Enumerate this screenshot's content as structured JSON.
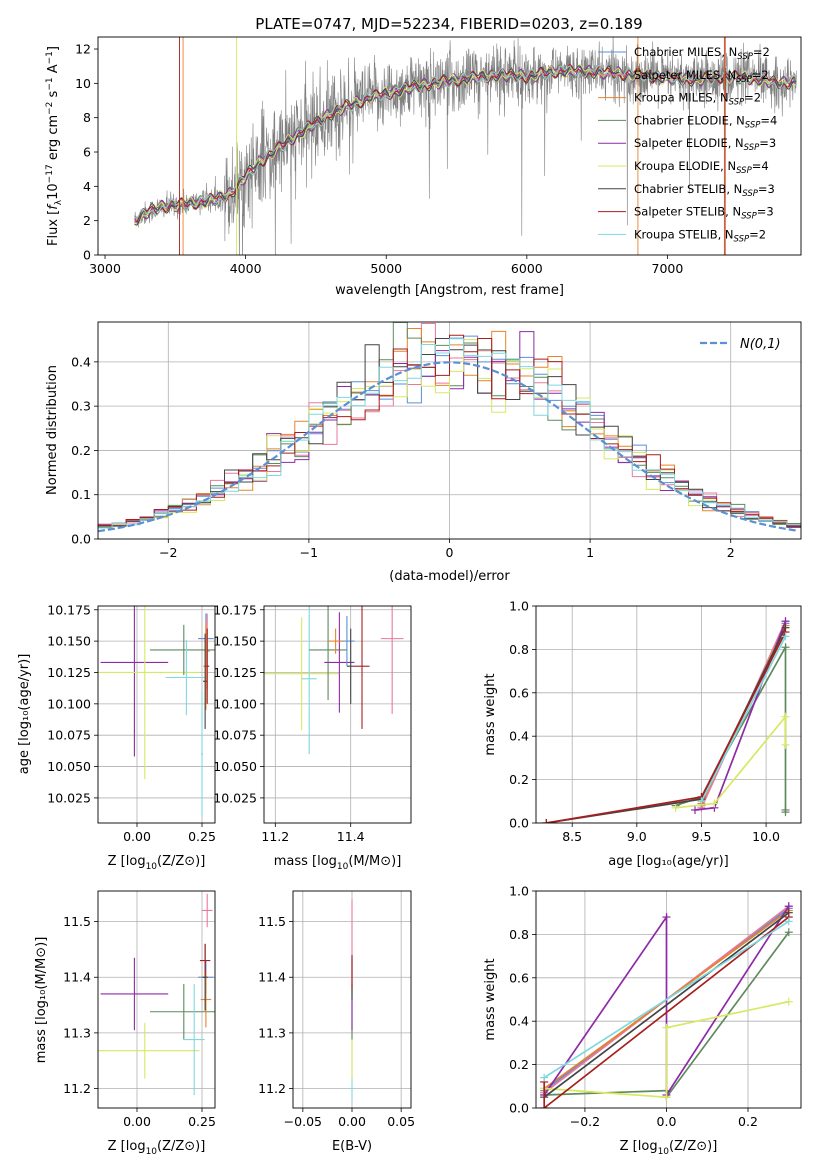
{
  "figure_title": "PLATE=0747, MJD=52234, FIBERID=0203, z=0.189",
  "colors": {
    "Chabrier MILES": "#5b8fd6",
    "Salpeter MILES": "#e8799a",
    "Kroupa MILES": "#e8832a",
    "Chabrier ELODIE": "#5e8a5e",
    "Salpeter ELODIE": "#8e2aa8",
    "Kroupa ELODIE": "#d8e860",
    "Chabrier STELIB": "#444444",
    "Salpeter STELIB": "#a81e1e",
    "Kroupa STELIB": "#7fd8e0",
    "data": "#808080",
    "normal": "#5b8fd6",
    "grid": "#b0b0b0"
  },
  "chart_data": [
    {
      "id": "spectrum",
      "type": "line",
      "title": "PLATE=0747, MJD=52234, FIBERID=0203, z=0.189",
      "xlabel": "wavelength [Angstrom, rest frame]",
      "ylabel": "Flux [f_λ 10^-17 erg cm^-2 s^-1 A^-1]",
      "xlim": [
        2950,
        7950
      ],
      "ylim": [
        0,
        12.7
      ],
      "xticks": [
        3000,
        4000,
        5000,
        6000,
        7000
      ],
      "yticks": [
        0,
        2,
        4,
        6,
        8,
        10,
        12
      ],
      "grid": false,
      "legend_position": "top-right",
      "legend": [
        {
          "label": "Chabrier MILES, N_SSP=2",
          "main": "Chabrier MILES, N",
          "sub": "SSP",
          "tail": "=2"
        },
        {
          "label": "Salpeter MILES, N_SSP=2",
          "main": "Salpeter MILES, N",
          "sub": "SSP",
          "tail": "=2"
        },
        {
          "label": "Kroupa MILES, N_SSP=2",
          "main": "Kroupa MILES, N",
          "sub": "SSP",
          "tail": "=2"
        },
        {
          "label": "Chabrier ELODIE, N_SSP=4",
          "main": "Chabrier ELODIE, N",
          "sub": "SSP",
          "tail": "=4"
        },
        {
          "label": "Salpeter ELODIE, N_SSP=3",
          "main": "Salpeter ELODIE, N",
          "sub": "SSP",
          "tail": "=3"
        },
        {
          "label": "Kroupa ELODIE, N_SSP=4",
          "main": "Kroupa ELODIE, N",
          "sub": "SSP",
          "tail": "=4"
        },
        {
          "label": "Chabrier STELIB, N_SSP=3",
          "main": "Chabrier STELIB, N",
          "sub": "SSP",
          "tail": "=3"
        },
        {
          "label": "Salpeter STELIB, N_SSP=3",
          "main": "Salpeter STELIB, N",
          "sub": "SSP",
          "tail": "=3"
        },
        {
          "label": "Kroupa STELIB, N_SSP=2",
          "main": "Kroupa STELIB, N",
          "sub": "SSP",
          "tail": "=2"
        }
      ],
      "continuum": {
        "x": [
          3210,
          3300,
          3400,
          3500,
          3600,
          3700,
          3800,
          3900,
          4000,
          4100,
          4200,
          4300,
          4400,
          4500,
          4600,
          4700,
          4800,
          4900,
          5000,
          5200,
          5400,
          5600,
          5800,
          6000,
          6200,
          6400,
          6600,
          6800,
          7000,
          7200,
          7400,
          7600,
          7800,
          7920
        ],
        "y": [
          2.0,
          2.5,
          2.8,
          2.9,
          3.0,
          3.1,
          3.3,
          3.6,
          4.6,
          5.4,
          6.0,
          6.6,
          7.2,
          7.7,
          8.2,
          8.6,
          8.9,
          9.2,
          9.4,
          9.8,
          10.1,
          10.3,
          10.5,
          10.4,
          10.7,
          10.7,
          10.6,
          10.5,
          10.3,
          10.2,
          10.4,
          10.3,
          10.0,
          10.1
        ]
      },
      "data_x_range": [
        3210,
        7920
      ]
    },
    {
      "id": "residuals",
      "type": "histogram",
      "xlabel": "(data-model)/error",
      "ylabel": "Normed distribution",
      "xlim": [
        -2.5,
        2.5
      ],
      "ylim": [
        0,
        0.49
      ],
      "xticks": [
        -2,
        -1,
        0,
        1,
        2
      ],
      "yticks": [
        0.0,
        0.1,
        0.2,
        0.3,
        0.4
      ],
      "grid": true,
      "legend_position": "top-right",
      "normal_label": "N(0,1)",
      "bin_width": 0.1
    },
    {
      "id": "age_vs_Z",
      "type": "errorbar",
      "xlabel_main": "Z [log",
      "xlabel_sub": "10",
      "xlabel_tail": "(Z/Z⊙)]",
      "ylabel": "age [log10(age/yr)]",
      "xlim": [
        -0.15,
        0.3
      ],
      "ylim": [
        10.005,
        10.178
      ],
      "xticks": [
        0.0,
        0.25
      ],
      "yticks": [
        10.025,
        10.05,
        10.075,
        10.1,
        10.125,
        10.15,
        10.175
      ],
      "grid": true,
      "points": [
        {
          "model": "Salpeter ELODIE",
          "x": -0.01,
          "xerr": 0.13,
          "y": 10.133,
          "yerr": 0.075
        },
        {
          "model": "Kroupa ELODIE",
          "x": 0.03,
          "xerr": 0.21,
          "y": 10.125,
          "yerr": 0.085
        },
        {
          "model": "Chabrier ELODIE",
          "x": 0.18,
          "xerr": 0.13,
          "y": 10.143,
          "yerr": 0.02
        },
        {
          "model": "Kroupa STELIB",
          "x": 0.19,
          "xerr": 0.08,
          "y": 10.121,
          "yerr": 0.03
        },
        {
          "model": "Chabrier MILES",
          "x": 0.265,
          "xerr": 0.03,
          "y": 10.152,
          "yerr": 0.02
        },
        {
          "model": "Salpeter MILES",
          "x": 0.27,
          "xerr": 0.01,
          "y": 10.142,
          "yerr": 0.03
        },
        {
          "model": "Kroupa MILES",
          "x": 0.265,
          "xerr": 0.01,
          "y": 10.13,
          "yerr": 0.035
        },
        {
          "model": "Chabrier STELIB",
          "x": 0.262,
          "xerr": 0.008,
          "y": 10.118,
          "yerr": 0.038
        },
        {
          "model": "Salpeter STELIB",
          "x": 0.27,
          "xerr": 0.008,
          "y": 10.13,
          "yerr": 0.03
        },
        {
          "model": "Kroupa STELIB",
          "x": 0.25,
          "xerr": 0.004,
          "y": 10.06,
          "yerr": 0.05
        }
      ]
    },
    {
      "id": "age_vs_mass",
      "type": "errorbar",
      "xlabel_main": "mass [log",
      "xlabel_sub": "10",
      "xlabel_tail": "(M/M⊙)]",
      "xlim": [
        11.17,
        11.56
      ],
      "ylim": [
        10.005,
        10.178
      ],
      "xticks": [
        11.2,
        11.4
      ],
      "yticks": [
        10.025,
        10.05,
        10.075,
        10.1,
        10.125,
        10.15,
        10.175
      ],
      "grid": true,
      "points": [
        {
          "model": "Kroupa ELODIE",
          "x": 11.27,
          "xerr": 0.1,
          "y": 10.124,
          "yerr": 0.045
        },
        {
          "model": "Kroupa STELIB",
          "x": 11.29,
          "xerr": 0.02,
          "y": 10.12,
          "yerr": 0.06
        },
        {
          "model": "Chabrier ELODIE",
          "x": 11.34,
          "xerr": 0.05,
          "y": 10.143,
          "yerr": 0.04
        },
        {
          "model": "Salpeter ELODIE",
          "x": 11.37,
          "xerr": 0.04,
          "y": 10.133,
          "yerr": 0.04
        },
        {
          "model": "Chabrier MILES",
          "x": 11.39,
          "xerr": 0.02,
          "y": 10.15,
          "yerr": 0.02
        },
        {
          "model": "Kroupa MILES",
          "x": 11.36,
          "xerr": 0.02,
          "y": 10.15,
          "yerr": 0.01
        },
        {
          "model": "Chabrier STELIB",
          "x": 11.4,
          "xerr": 0.01,
          "y": 10.13,
          "yerr": 0.03
        },
        {
          "model": "Salpeter STELIB",
          "x": 11.43,
          "xerr": 0.02,
          "y": 10.13,
          "yerr": 0.05
        },
        {
          "model": "Salpeter MILES",
          "x": 11.51,
          "xerr": 0.03,
          "y": 10.152,
          "yerr": 0.06
        }
      ]
    },
    {
      "id": "weight_vs_age",
      "type": "line",
      "xlabel": "age [log10(age/yr)]",
      "ylabel": "mass weight",
      "xlim": [
        8.22,
        10.27
      ],
      "ylim": [
        0,
        1.0
      ],
      "xticks": [
        8.5,
        9.0,
        9.5,
        10.0
      ],
      "yticks": [
        0.0,
        0.2,
        0.4,
        0.6,
        0.8,
        1.0
      ],
      "grid": true,
      "series": [
        {
          "model": "Chabrier MILES",
          "x": [
            9.5,
            10.15
          ],
          "y": [
            0.08,
            0.92
          ]
        },
        {
          "model": "Salpeter MILES",
          "x": [
            9.5,
            10.15
          ],
          "y": [
            0.07,
            0.93
          ]
        },
        {
          "model": "Kroupa MILES",
          "x": [
            9.5,
            10.15
          ],
          "y": [
            0.09,
            0.91
          ]
        },
        {
          "model": "Chabrier ELODIE",
          "x": [
            9.3,
            9.5,
            10.15,
            10.15,
            10.15
          ],
          "y": [
            0.08,
            0.12,
            0.81,
            0.06,
            0.05
          ]
        },
        {
          "model": "Salpeter ELODIE",
          "x": [
            9.45,
            9.6,
            10.15
          ],
          "y": [
            0.06,
            0.07,
            0.93
          ]
        },
        {
          "model": "Kroupa ELODIE",
          "x": [
            9.3,
            9.6,
            10.15,
            10.15
          ],
          "y": [
            0.07,
            0.09,
            0.49,
            0.36
          ]
        },
        {
          "model": "Chabrier STELIB",
          "x": [
            8.3,
            9.5,
            10.15
          ],
          "y": [
            0.0,
            0.11,
            0.9
          ]
        },
        {
          "model": "Salpeter STELIB",
          "x": [
            8.3,
            9.5,
            10.15
          ],
          "y": [
            0.0,
            0.12,
            0.88
          ]
        },
        {
          "model": "Kroupa STELIB",
          "x": [
            9.5,
            10.15
          ],
          "y": [
            0.1,
            0.86
          ]
        }
      ]
    },
    {
      "id": "mass_vs_Z",
      "type": "errorbar",
      "xlabel_main": "Z [log",
      "xlabel_sub": "10",
      "xlabel_tail": "(Z/Z⊙)]",
      "ylabel": "mass [log10(M/M⊙)]",
      "xlim": [
        -0.15,
        0.3
      ],
      "ylim": [
        11.165,
        11.555
      ],
      "xticks": [
        0.0,
        0.25
      ],
      "yticks": [
        11.2,
        11.3,
        11.4,
        11.5
      ],
      "grid": true,
      "points": [
        {
          "model": "Salpeter ELODIE",
          "x": -0.01,
          "xerr": 0.13,
          "y": 11.37,
          "yerr": 0.065
        },
        {
          "model": "Kroupa ELODIE",
          "x": 0.03,
          "xerr": 0.21,
          "y": 11.268,
          "yerr": 0.05
        },
        {
          "model": "Chabrier ELODIE",
          "x": 0.18,
          "xerr": 0.13,
          "y": 11.338,
          "yerr": 0.05
        },
        {
          "model": "Kroupa STELIB",
          "x": 0.22,
          "xerr": 0.04,
          "y": 11.288,
          "yerr": 0.1
        },
        {
          "model": "Chabrier MILES",
          "x": 0.265,
          "xerr": 0.03,
          "y": 11.4,
          "yerr": 0.03
        },
        {
          "model": "Salpeter MILES",
          "x": 0.27,
          "xerr": 0.02,
          "y": 11.52,
          "yerr": 0.03
        },
        {
          "model": "Kroupa MILES",
          "x": 0.265,
          "xerr": 0.02,
          "y": 11.36,
          "yerr": 0.05
        },
        {
          "model": "Chabrier STELIB",
          "x": 0.262,
          "xerr": 0.01,
          "y": 11.4,
          "yerr": 0.06
        },
        {
          "model": "Salpeter STELIB",
          "x": 0.262,
          "xerr": 0.02,
          "y": 11.43,
          "yerr": 0.03
        }
      ]
    },
    {
      "id": "mass_vs_ebv",
      "type": "errorbar",
      "xlabel": "E(B-V)",
      "xlim": [
        -0.06,
        0.06
      ],
      "ylim": [
        11.165,
        11.555
      ],
      "xticks": [
        -0.05,
        0.0,
        0.05
      ],
      "yticks": [
        11.2,
        11.3,
        11.4,
        11.5
      ],
      "grid": true,
      "points": [
        {
          "model": "Kroupa STELIB",
          "x": 0.0,
          "xerr": 0.0,
          "y": 11.288,
          "yerr": 0.11
        },
        {
          "model": "Kroupa ELODIE",
          "x": 0.0,
          "xerr": 0.0,
          "y": 11.268,
          "yerr": 0.05
        },
        {
          "model": "Chabrier ELODIE",
          "x": 0.0,
          "xerr": 0.0,
          "y": 11.338,
          "yerr": 0.05
        },
        {
          "model": "Salpeter ELODIE",
          "x": 0.0,
          "xerr": 0.0,
          "y": 11.37,
          "yerr": 0.065
        },
        {
          "model": "Salpeter MILES",
          "x": 0.0,
          "xerr": 0.0,
          "y": 11.49,
          "yerr": 0.05
        },
        {
          "model": "Chabrier STELIB",
          "x": 0.0,
          "xerr": 0.0,
          "y": 11.4,
          "yerr": 0.04
        },
        {
          "model": "Salpeter STELIB",
          "x": 0.0,
          "xerr": 0.0,
          "y": 11.41,
          "yerr": 0.03
        }
      ]
    },
    {
      "id": "weight_vs_Z",
      "type": "line",
      "xlabel_main": "Z [log",
      "xlabel_sub": "10",
      "xlabel_tail": "(Z/Z⊙)]",
      "ylabel": "mass weight",
      "xlim": [
        -0.32,
        0.33
      ],
      "ylim": [
        0,
        1.0
      ],
      "xticks": [
        -0.2,
        0.0,
        0.2
      ],
      "yticks": [
        0.0,
        0.2,
        0.4,
        0.6,
        0.8,
        1.0
      ],
      "grid": true,
      "series": [
        {
          "model": "Chabrier MILES",
          "x": [
            -0.3,
            0.3
          ],
          "y": [
            0.08,
            0.92
          ]
        },
        {
          "model": "Salpeter MILES",
          "x": [
            -0.3,
            0.3
          ],
          "y": [
            0.07,
            0.93
          ]
        },
        {
          "model": "Kroupa MILES",
          "x": [
            -0.3,
            0.3
          ],
          "y": [
            0.09,
            0.91
          ]
        },
        {
          "model": "Chabrier ELODIE",
          "x": [
            -0.3,
            0.0,
            0.0,
            0.3
          ],
          "y": [
            0.06,
            0.08,
            0.05,
            0.81
          ]
        },
        {
          "model": "Salpeter ELODIE",
          "x": [
            -0.3,
            0.0,
            0.0,
            0.3
          ],
          "y": [
            0.06,
            0.88,
            0.06,
            0.93
          ]
        },
        {
          "model": "Kroupa ELODIE",
          "x": [
            -0.3,
            0.0,
            0.0,
            0.3
          ],
          "y": [
            0.09,
            0.05,
            0.37,
            0.49
          ]
        },
        {
          "model": "Chabrier STELIB",
          "x": [
            -0.3,
            0.3
          ],
          "y": [
            0.05,
            0.9
          ]
        },
        {
          "model": "Salpeter STELIB",
          "x": [
            -0.3,
            -0.3,
            0.3
          ],
          "y": [
            0.12,
            0.0,
            0.88
          ]
        },
        {
          "model": "Kroupa STELIB",
          "x": [
            -0.3,
            0.3
          ],
          "y": [
            0.14,
            0.86
          ]
        }
      ]
    }
  ]
}
